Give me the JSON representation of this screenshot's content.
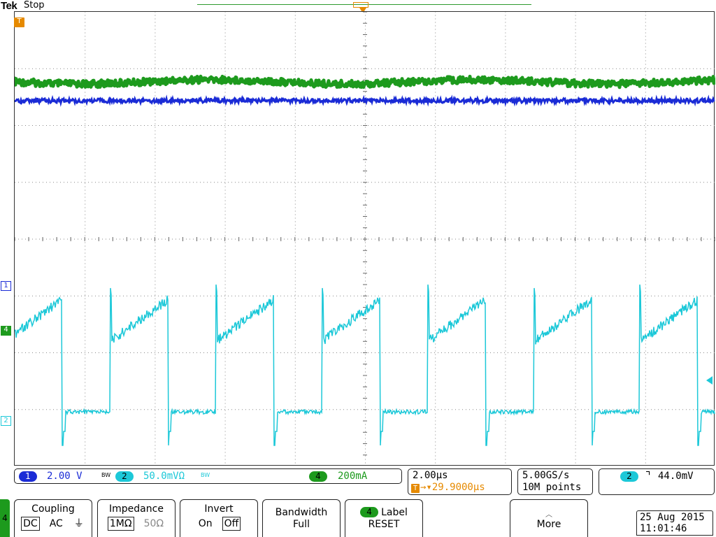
{
  "header": {
    "brand": "Tek",
    "run_state": "Stop"
  },
  "markers": {
    "trigger_position": "T",
    "ch1": "1",
    "ch4": "4",
    "ch2": "2"
  },
  "vertical": {
    "ch1": {
      "number": "1",
      "scale": "2.00 V",
      "bw_flag": "BW",
      "color": "#1a2bd6"
    },
    "ch2": {
      "number": "2",
      "scale": "50.0mVΩ",
      "bw_flag": "BW",
      "color": "#1cc8d8"
    },
    "ch4": {
      "number": "4",
      "scale": "200mA",
      "color": "#1d9a1d"
    }
  },
  "horizontal": {
    "scale": "2.00μs",
    "trigger_icon": "T",
    "delay": "→▾29.9000μs"
  },
  "acquisition": {
    "sample_rate": "5.00GS/s",
    "record_length": "10M points"
  },
  "trigger": {
    "source": "2",
    "slope_icon": "falling-edge-icon",
    "slope_glyph": "⌝",
    "level": "44.0mV"
  },
  "menu": {
    "channel": "4",
    "coupling": {
      "title": "Coupling",
      "options": [
        "DC",
        "AC",
        "⏚"
      ],
      "selected": "DC"
    },
    "impedance": {
      "title": "Impedance",
      "options": [
        "1MΩ",
        "50Ω"
      ],
      "selected": "1MΩ"
    },
    "invert": {
      "title": "Invert",
      "options": [
        "On",
        "Off"
      ],
      "selected": "Off"
    },
    "bandwidth": {
      "title": "Bandwidth",
      "value": "Full"
    },
    "label": {
      "channel": "4",
      "title": "Label",
      "action": "RESET"
    },
    "more": {
      "title": "More"
    }
  },
  "datetime": {
    "date": "25 Aug 2015",
    "time": "11:01:46"
  },
  "colors": {
    "ch1": "#1a2bd6",
    "ch2": "#1cc8d8",
    "ch4": "#1d9a1d",
    "trigger": "#e68a00"
  }
}
